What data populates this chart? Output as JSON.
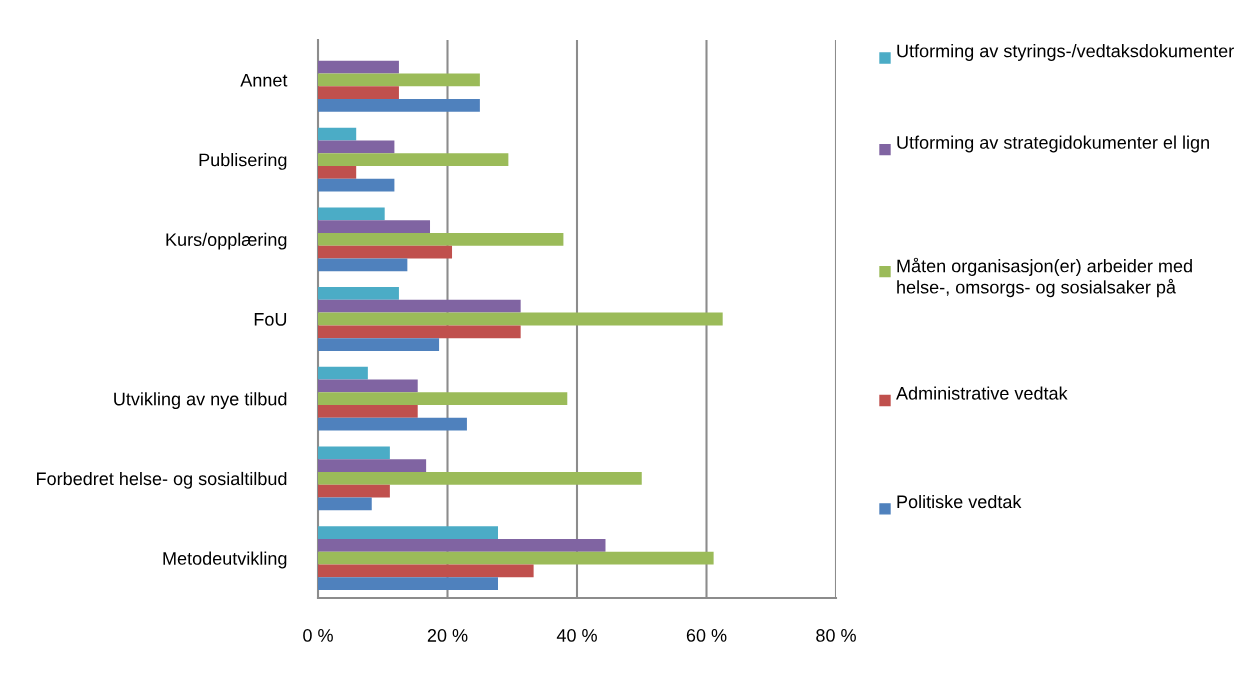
{
  "chart_data": {
    "type": "bar",
    "orientation": "horizontal",
    "categories": [
      "Annet",
      "Publisering",
      "Kurs/opplæring",
      "FoU",
      "Utvikling av nye tilbud",
      "Forbedret helse- og sosialtilbud",
      "Metodeutvikling"
    ],
    "series": [
      {
        "name": "Utforming av styrings-/vedtaksdokumenter",
        "color": "#4bacc6",
        "values": [
          null,
          5.9,
          10.3,
          12.5,
          7.7,
          11.1,
          27.8
        ]
      },
      {
        "name": "Utforming av strategidokumenter el lign",
        "color": "#8064a2",
        "values": [
          12.5,
          11.8,
          17.3,
          31.3,
          15.4,
          16.7,
          44.4
        ]
      },
      {
        "name": "Måten organisasjon(er) arbeider med helse-, omsorgs- og sosialsaker på",
        "color": "#9bbb59",
        "values": [
          25,
          29.4,
          37.9,
          62.5,
          38.5,
          50.0,
          61.1
        ]
      },
      {
        "name": "Administrative vedtak",
        "color": "#c0504d",
        "values": [
          12.5,
          5.9,
          20.7,
          31.3,
          15.4,
          11.1,
          33.3
        ]
      },
      {
        "name": "Politiske vedtak",
        "color": "#4f81bd",
        "values": [
          25,
          11.8,
          13.8,
          18.7,
          23.0,
          8.3,
          27.8
        ]
      }
    ],
    "xlim": [
      0,
      80
    ],
    "xticks": [
      {
        "value": 0,
        "label": "0 %"
      },
      {
        "value": 20,
        "label": "20 %"
      },
      {
        "value": 40,
        "label": "40 %"
      },
      {
        "value": 60,
        "label": "60 %"
      },
      {
        "value": 80,
        "label": "80 %"
      }
    ],
    "grid": "x",
    "legend": "right"
  }
}
